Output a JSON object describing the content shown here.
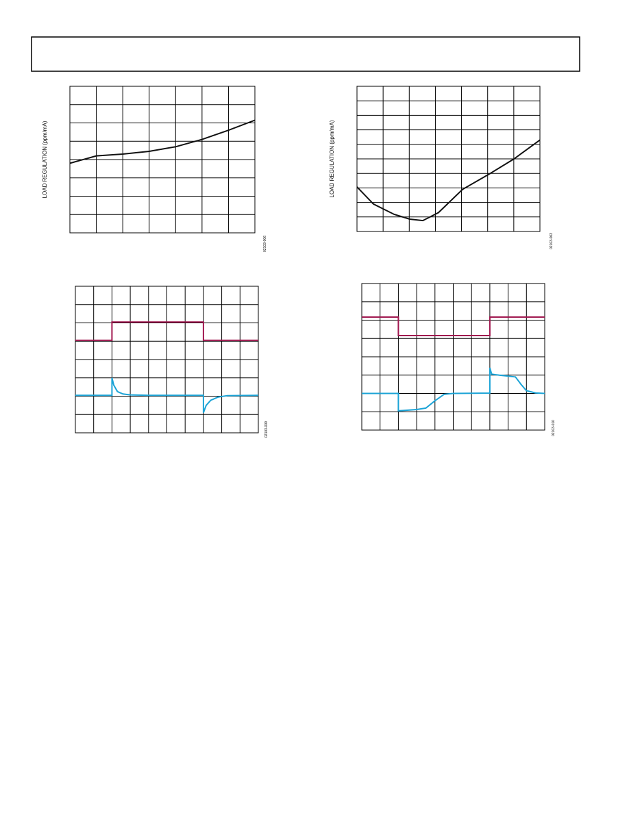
{
  "chart_data": [
    {
      "type": "line",
      "y_label": "LOAD REGULATION (ppm/mA)",
      "figure_id": "02103-006",
      "xlim": [
        0,
        7
      ],
      "ylim": [
        0,
        8
      ],
      "grid": {
        "columns": 7,
        "rows": 8
      },
      "series": [
        {
          "color": "#111111",
          "x": [
            0,
            1,
            2,
            3,
            4,
            5,
            6,
            7
          ],
          "values": [
            3.8,
            4.2,
            4.3,
            4.45,
            4.7,
            5.1,
            5.6,
            6.15
          ]
        }
      ]
    },
    {
      "type": "line",
      "y_label": "LOAD REGULATION (ppm/mA)",
      "figure_id": "02103-003",
      "xlim": [
        0,
        7
      ],
      "ylim": [
        0,
        10
      ],
      "grid": {
        "columns": 7,
        "rows": 10
      },
      "series": [
        {
          "color": "#111111",
          "x": [
            0,
            0.63,
            1.42,
            2.02,
            2.52,
            3.12,
            4.04,
            5.01,
            6.01,
            7
          ],
          "values": [
            3.07,
            1.89,
            1.18,
            0.85,
            0.75,
            1.3,
            2.9,
            3.9,
            5.0,
            6.3
          ]
        }
      ]
    },
    {
      "type": "line",
      "figure_id": "02103-009",
      "xlim": [
        0,
        10
      ],
      "ylim": [
        0,
        8
      ],
      "grid": {
        "columns": 10,
        "rows": 8
      },
      "series": [
        {
          "color": "#a0174f",
          "x": [
            0,
            2,
            2,
            7,
            7,
            10
          ],
          "values": [
            5.05,
            5.05,
            6.05,
            6.05,
            5.05,
            5.05
          ]
        },
        {
          "color": "#1ba3d6",
          "x": [
            0,
            2,
            2,
            2.1,
            2.3,
            2.6,
            3,
            4,
            7,
            7,
            7.15,
            7.4,
            7.8,
            8.3,
            10
          ],
          "values": [
            2.05,
            2.05,
            3.0,
            2.6,
            2.25,
            2.12,
            2.07,
            2.05,
            2.05,
            1.1,
            1.5,
            1.78,
            1.95,
            2.03,
            2.05
          ]
        }
      ]
    },
    {
      "type": "line",
      "figure_id": "02103-010",
      "xlim": [
        0,
        10
      ],
      "ylim": [
        0,
        8
      ],
      "grid": {
        "columns": 10,
        "rows": 8
      },
      "series": [
        {
          "color": "#a0174f",
          "x": [
            0,
            2,
            2,
            7,
            7,
            10
          ],
          "values": [
            6.17,
            6.17,
            5.16,
            5.16,
            6.17,
            6.17
          ]
        },
        {
          "color": "#1ba3d6",
          "x": [
            0,
            2,
            2,
            3,
            3.5,
            4,
            4.5,
            5,
            7,
            7,
            7.1,
            7.5,
            8.4,
            8.7,
            9,
            9.5,
            10
          ],
          "values": [
            2.0,
            2.0,
            1.05,
            1.12,
            1.2,
            1.6,
            1.95,
            2.0,
            2.02,
            3.4,
            3.05,
            3.0,
            2.9,
            2.5,
            2.15,
            2.03,
            2.0
          ]
        }
      ]
    }
  ]
}
